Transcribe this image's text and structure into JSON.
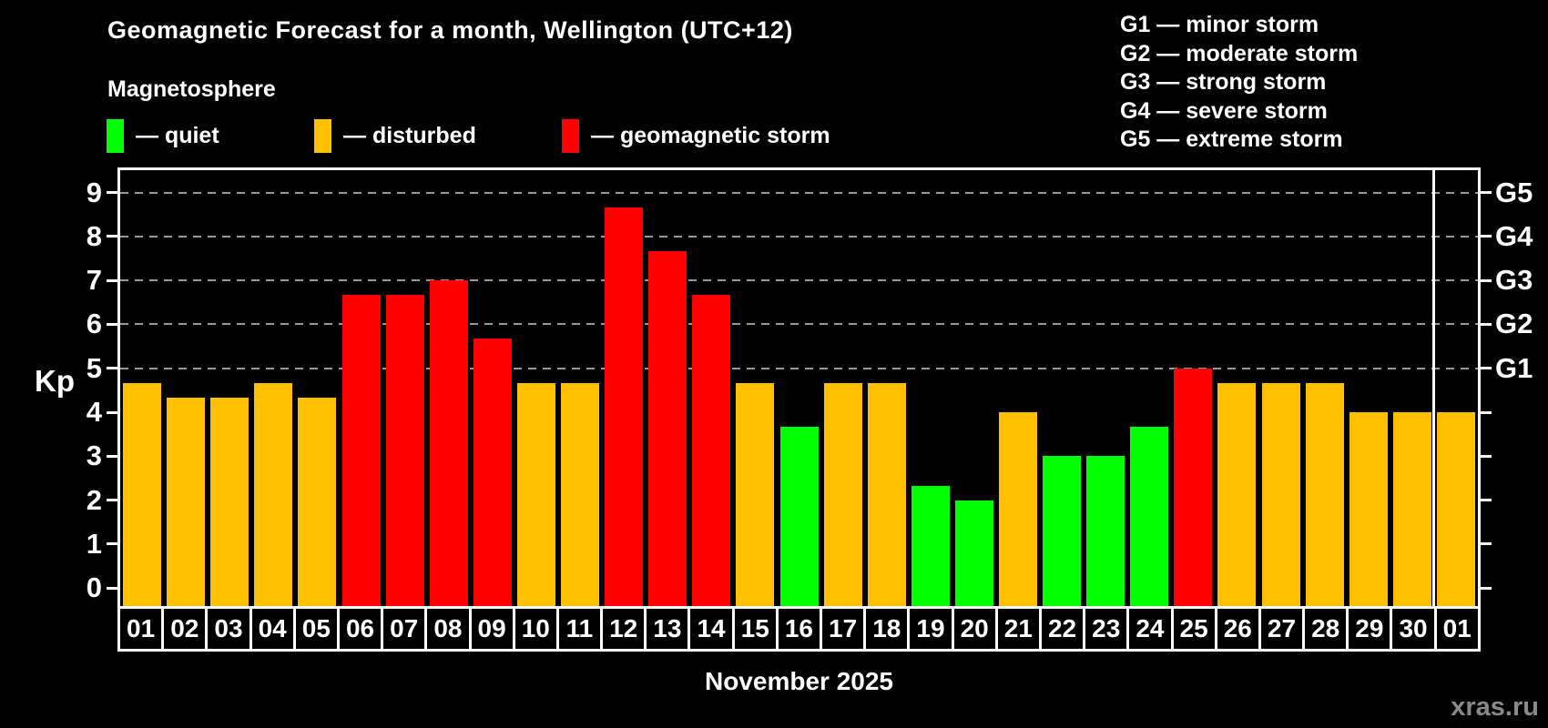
{
  "header": {
    "title": "Geomagnetic Forecast for a month, Wellington (UTC+12)",
    "subtitle": "Magnetosphere"
  },
  "legend": {
    "items": [
      {
        "key": "quiet",
        "label": "— quiet",
        "color": "#00ff00"
      },
      {
        "key": "disturbed",
        "label": "— disturbed",
        "color": "#ffc000"
      },
      {
        "key": "storm",
        "label": "— geomagnetic storm",
        "color": "#ff0000"
      }
    ]
  },
  "g_legend": {
    "lines": [
      "G1 — minor storm",
      "G2 — moderate storm",
      "G3 — strong storm",
      "G4 — severe storm",
      "G5 — extreme storm"
    ]
  },
  "axis": {
    "y_label": "Kp",
    "left_ticks": [
      0,
      1,
      2,
      3,
      4,
      5,
      6,
      7,
      8,
      9
    ],
    "grid_levels": [
      5,
      6,
      7,
      8,
      9
    ],
    "right_labels": [
      {
        "label": "G1",
        "kp": 5
      },
      {
        "label": "G2",
        "kp": 6
      },
      {
        "label": "G3",
        "kp": 7
      },
      {
        "label": "G4",
        "kp": 8
      },
      {
        "label": "G5",
        "kp": 9
      }
    ]
  },
  "chart_data": {
    "type": "bar",
    "title": "Geomagnetic Forecast for a month, Wellington (UTC+12)",
    "ylabel": "Kp",
    "xlabel": "November 2025",
    "ylim": [
      0,
      9
    ],
    "grid": "dashed horizontal at Kp 5-9 (G1-G5)",
    "categories": [
      "01",
      "02",
      "03",
      "04",
      "05",
      "06",
      "07",
      "08",
      "09",
      "10",
      "11",
      "12",
      "13",
      "14",
      "15",
      "16",
      "17",
      "18",
      "19",
      "20",
      "21",
      "22",
      "23",
      "24",
      "25",
      "26",
      "27",
      "28",
      "29",
      "30",
      "01"
    ],
    "values": [
      4.67,
      4.33,
      4.33,
      4.67,
      4.33,
      6.67,
      6.67,
      7.0,
      5.67,
      4.67,
      4.67,
      8.67,
      7.67,
      6.67,
      4.67,
      3.67,
      4.67,
      4.67,
      2.33,
      2.0,
      4.0,
      3.0,
      3.0,
      3.67,
      5.0,
      4.67,
      4.67,
      4.67,
      4.0,
      4.0,
      4.0
    ],
    "statuses": [
      "disturbed",
      "disturbed",
      "disturbed",
      "disturbed",
      "disturbed",
      "storm",
      "storm",
      "storm",
      "storm",
      "disturbed",
      "disturbed",
      "storm",
      "storm",
      "storm",
      "disturbed",
      "quiet",
      "disturbed",
      "disturbed",
      "quiet",
      "quiet",
      "disturbed",
      "quiet",
      "quiet",
      "quiet",
      "storm",
      "disturbed",
      "disturbed",
      "disturbed",
      "disturbed",
      "disturbed",
      "disturbed"
    ],
    "colors": {
      "quiet": "#00ff00",
      "disturbed": "#ffc000",
      "storm": "#ff0000"
    },
    "month_label": "November 2025",
    "month_boundary_index": 30
  },
  "watermark": "xras.ru"
}
